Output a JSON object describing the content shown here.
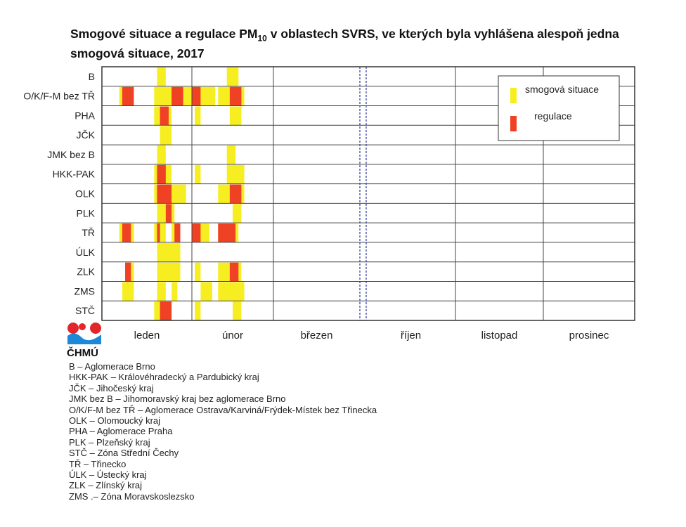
{
  "chart_data": {
    "type": "gantt",
    "title_main": "Smogové situace a regulace PM",
    "title_sub": "10",
    "title_rest": " v oblastech SVRS, ve kterých byla vyhlášena alespoň jedna smogová situace, 2017",
    "x_unit": "day of year 2017",
    "months": [
      {
        "label": "leden",
        "start": 1,
        "end": 31
      },
      {
        "label": "únor",
        "start": 32,
        "end": 59
      },
      {
        "label": "březen",
        "start": 60,
        "end": 90
      },
      {
        "label": "říjen",
        "start": 274,
        "end": 304
      },
      {
        "label": "listopad",
        "start": 305,
        "end": 334
      },
      {
        "label": "prosinec",
        "start": 335,
        "end": 365
      }
    ],
    "axis_break": "between březen and říjen",
    "legend": {
      "placement": "top-right",
      "items": [
        {
          "label": "smogová situace",
          "color": "#f7ee22"
        },
        {
          "label": "regulace",
          "color": "#ef4123"
        }
      ]
    },
    "colors": {
      "smog": "#f7ee22",
      "regulation": "#ef4123"
    },
    "rows": [
      {
        "label": "B",
        "smog": [
          [
            20,
            22
          ],
          [
            44,
            47
          ]
        ],
        "regulation": []
      },
      {
        "label": "O/K/F-M bez TŘ",
        "smog": [
          [
            7,
            11
          ],
          [
            19,
            31
          ],
          [
            32,
            39
          ],
          [
            41,
            49
          ]
        ],
        "regulation": [
          [
            8,
            11
          ],
          [
            25,
            28
          ],
          [
            32,
            34
          ],
          [
            45,
            48
          ]
        ]
      },
      {
        "label": "PHA",
        "smog": [
          [
            19,
            24
          ],
          [
            33,
            34
          ],
          [
            45,
            48
          ]
        ],
        "regulation": [
          [
            21,
            23
          ]
        ]
      },
      {
        "label": "JČK",
        "smog": [
          [
            21,
            24
          ]
        ],
        "regulation": []
      },
      {
        "label": "JMK bez B",
        "smog": [
          [
            20,
            22
          ],
          [
            44,
            46
          ]
        ],
        "regulation": []
      },
      {
        "label": "HKK-PAK",
        "smog": [
          [
            19,
            24
          ],
          [
            33,
            34
          ],
          [
            44,
            49
          ]
        ],
        "regulation": [
          [
            20,
            22
          ]
        ]
      },
      {
        "label": "OLK",
        "smog": [
          [
            19,
            29
          ],
          [
            41,
            49
          ]
        ],
        "regulation": [
          [
            20,
            24
          ],
          [
            45,
            48
          ]
        ]
      },
      {
        "label": "PLK",
        "smog": [
          [
            20,
            25
          ],
          [
            46,
            48
          ]
        ],
        "regulation": [
          [
            23,
            24
          ]
        ]
      },
      {
        "label": "TŘ",
        "smog": [
          [
            7,
            11
          ],
          [
            19,
            22
          ],
          [
            25,
            27
          ],
          [
            32,
            37
          ],
          [
            41,
            47
          ]
        ],
        "regulation": [
          [
            8,
            10
          ],
          [
            20,
            20
          ],
          [
            26,
            27
          ],
          [
            32,
            34
          ],
          [
            41,
            46
          ]
        ]
      },
      {
        "label": "ÚLK",
        "smog": [
          [
            20,
            27
          ]
        ],
        "regulation": []
      },
      {
        "label": "ZLK",
        "smog": [
          [
            9,
            11
          ],
          [
            20,
            27
          ],
          [
            33,
            34
          ],
          [
            41,
            48
          ]
        ],
        "regulation": [
          [
            9,
            10
          ],
          [
            45,
            47
          ]
        ]
      },
      {
        "label": "ZMS",
        "smog": [
          [
            8,
            11
          ],
          [
            20,
            22
          ],
          [
            25,
            26
          ],
          [
            35,
            38
          ],
          [
            41,
            49
          ]
        ],
        "regulation": []
      },
      {
        "label": "STČ",
        "smog": [
          [
            19,
            24
          ],
          [
            33,
            34
          ],
          [
            46,
            48
          ]
        ],
        "regulation": [
          [
            21,
            24
          ]
        ]
      }
    ]
  },
  "logo": {
    "text": "ČHMÚ"
  },
  "footnotes": [
    "B – Aglomerace Brno",
    "HKK-PAK – Královéhradecký a Pardubický kraj",
    "JČK – Jihočeský kraj",
    "JMK bez B – Jihomoravský kraj bez aglomerace Brno",
    "O/K/F-M bez TŘ – Aglomerace Ostrava/Karviná/Frýdek-Místek bez Třinecka",
    "OLK – Olomoucký kraj",
    "PHA – Aglomerace Praha",
    "PLK – Plzeňský kraj",
    "STČ – Zóna Střední Čechy",
    "TŘ – Třinecko",
    "ÚLK – Ústecký kraj",
    "ZLK – Zlínský kraj",
    "ZMS .– Zóna Moravskoslezsko"
  ]
}
